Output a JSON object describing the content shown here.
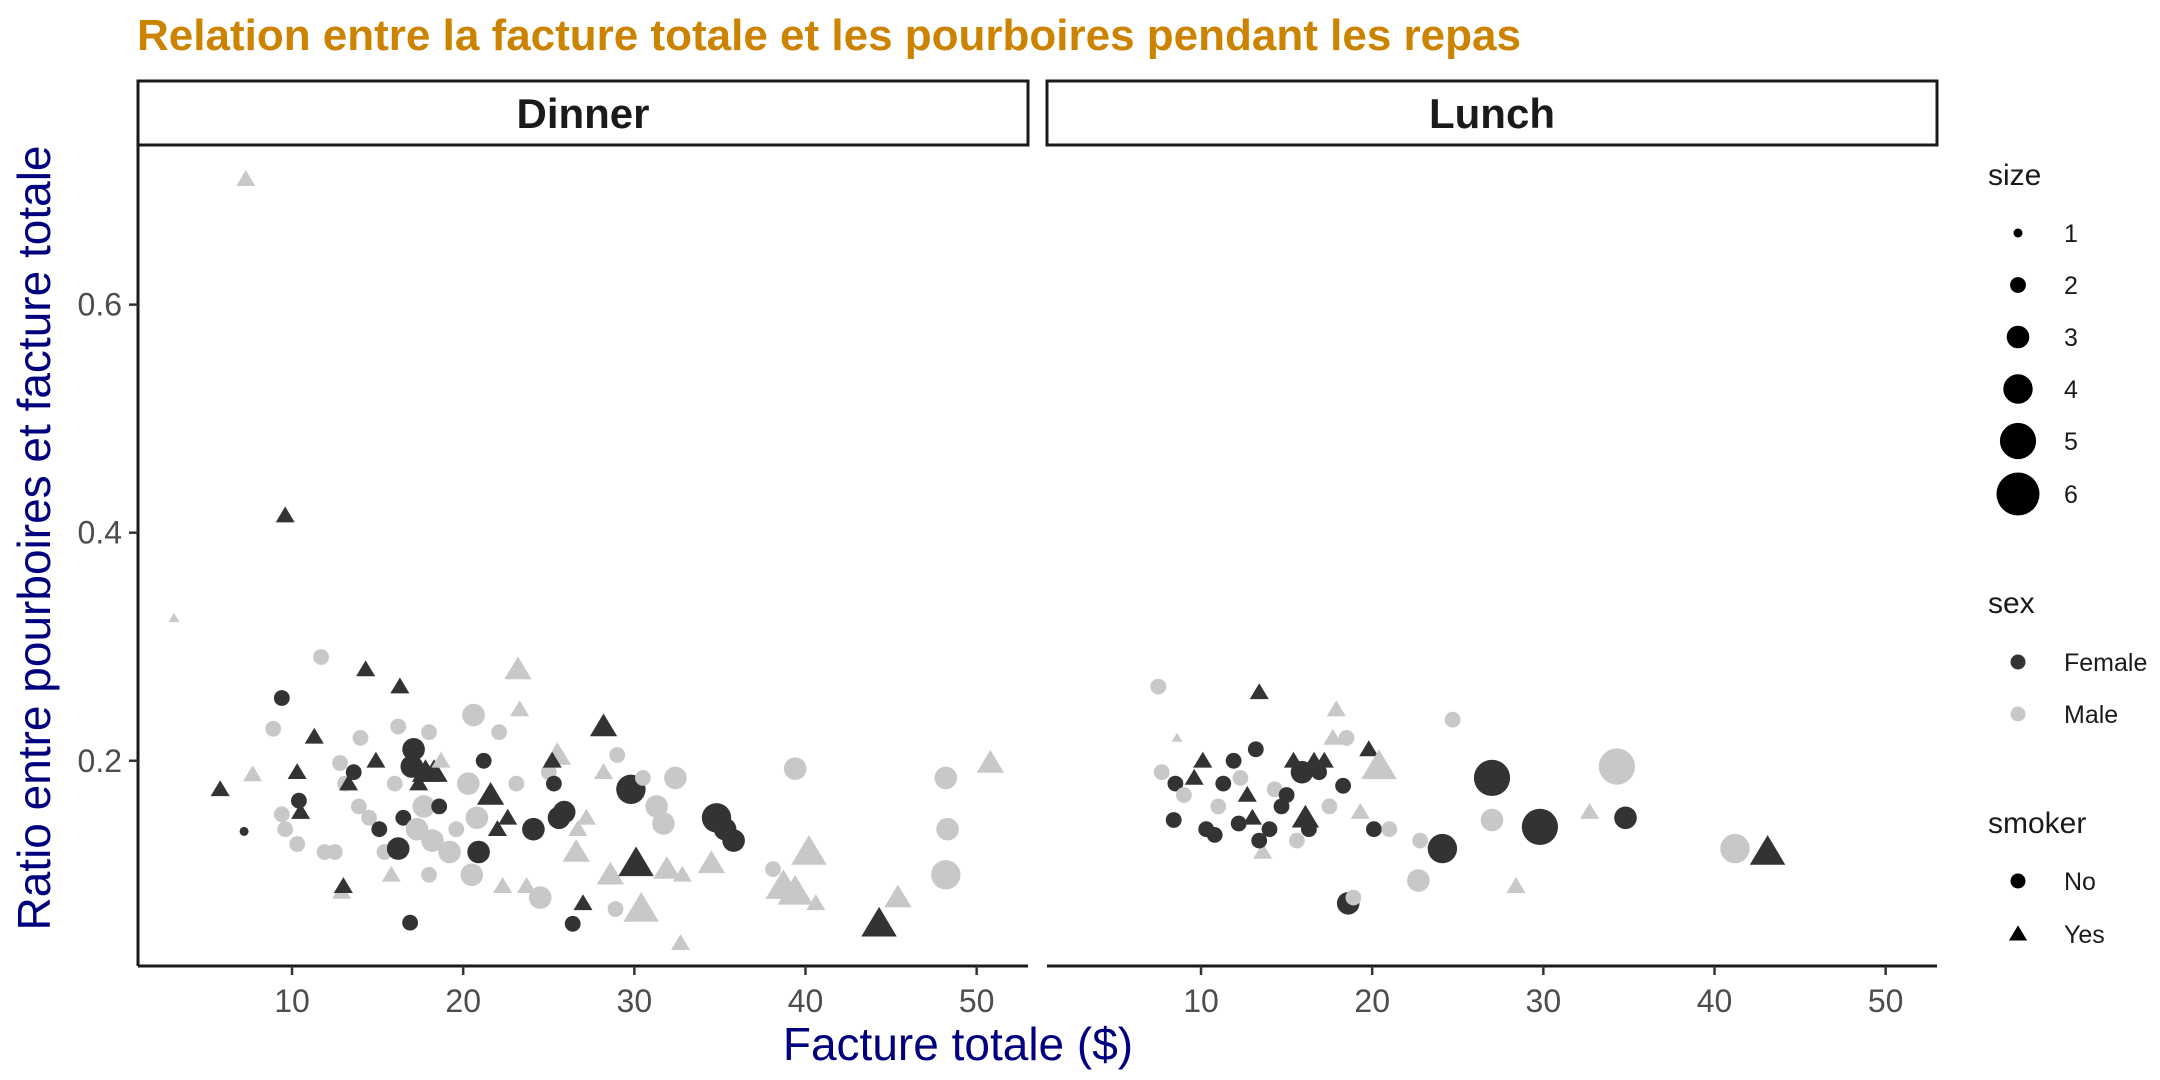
{
  "chart_data": {
    "type": "scatter",
    "title": "Relation entre la facture totale et les pourboires pendant les repas",
    "xlabel": "Facture totale ($)",
    "ylabel": "Ratio entre pourboires et facture totale",
    "xlim": [
      1,
      53
    ],
    "ylim": [
      0.02,
      0.74
    ],
    "x_ticks": [
      10,
      20,
      30,
      40,
      50
    ],
    "y_ticks": [
      0.2,
      0.4,
      0.6
    ],
    "x_tick_labels": [
      "10",
      "20",
      "30",
      "40",
      "50"
    ],
    "y_tick_labels": [
      "0.2",
      "0.4",
      "0.6"
    ],
    "grid": false,
    "legend_position": "right",
    "colors": {
      "title": "#cc8400",
      "axis_title": "#00007f",
      "female": "#333333",
      "male": "#c8c8c8"
    },
    "panels": [
      "Dinner",
      "Lunch"
    ],
    "legends": {
      "size": {
        "title": "size",
        "values": [
          "1",
          "2",
          "3",
          "4",
          "5",
          "6"
        ]
      },
      "sex": {
        "title": "sex",
        "values": [
          "Female",
          "Male"
        ]
      },
      "smoker": {
        "title": "smoker",
        "values": [
          "No",
          "Yes"
        ]
      }
    },
    "field_order": [
      "total_bill",
      "tip_ratio",
      "size",
      "sex",
      "smoker"
    ],
    "points": {
      "Dinner": [
        [
          7.3,
          0.71,
          2,
          "M",
          "Y"
        ],
        [
          3.1,
          0.325,
          1,
          "M",
          "Y"
        ],
        [
          9.6,
          0.415,
          2,
          "F",
          "Y"
        ],
        [
          7.2,
          0.138,
          1,
          "F",
          "N"
        ],
        [
          5.8,
          0.175,
          2,
          "F",
          "Y"
        ],
        [
          7.7,
          0.188,
          2,
          "M",
          "Y"
        ],
        [
          9.4,
          0.255,
          2,
          "F",
          "N"
        ],
        [
          11.7,
          0.291,
          2,
          "M",
          "N"
        ],
        [
          8.9,
          0.228,
          2,
          "M",
          "N"
        ],
        [
          11.3,
          0.221,
          2,
          "F",
          "Y"
        ],
        [
          10.3,
          0.19,
          2,
          "F",
          "Y"
        ],
        [
          10.4,
          0.165,
          2,
          "F",
          "N"
        ],
        [
          10.5,
          0.155,
          2,
          "F",
          "Y"
        ],
        [
          10.3,
          0.127,
          2,
          "M",
          "N"
        ],
        [
          9.6,
          0.14,
          2,
          "M",
          "N"
        ],
        [
          9.4,
          0.153,
          2,
          "M",
          "N"
        ],
        [
          11.9,
          0.12,
          2,
          "M",
          "N"
        ],
        [
          12.5,
          0.12,
          2,
          "M",
          "N"
        ],
        [
          12.8,
          0.198,
          2,
          "M",
          "N"
        ],
        [
          13.1,
          0.18,
          2,
          "M",
          "N"
        ],
        [
          12.9,
          0.085,
          2,
          "M",
          "Y"
        ],
        [
          13.0,
          0.09,
          2,
          "F",
          "Y"
        ],
        [
          14.3,
          0.28,
          2,
          "F",
          "Y"
        ],
        [
          14.0,
          0.22,
          2,
          "M",
          "N"
        ],
        [
          13.6,
          0.19,
          2,
          "F",
          "N"
        ],
        [
          13.3,
          0.18,
          2,
          "F",
          "Y"
        ],
        [
          13.9,
          0.16,
          2,
          "M",
          "N"
        ],
        [
          14.5,
          0.15,
          2,
          "M",
          "N"
        ],
        [
          14.9,
          0.2,
          2,
          "F",
          "Y"
        ],
        [
          15.1,
          0.14,
          2,
          "F",
          "N"
        ],
        [
          15.4,
          0.12,
          2,
          "M",
          "N"
        ],
        [
          15.8,
          0.1,
          2,
          "M",
          "Y"
        ],
        [
          16.3,
          0.265,
          2,
          "F",
          "Y"
        ],
        [
          16.2,
          0.23,
          2,
          "M",
          "N"
        ],
        [
          16.0,
          0.18,
          2,
          "M",
          "N"
        ],
        [
          16.5,
          0.15,
          2,
          "F",
          "N"
        ],
        [
          16.2,
          0.123,
          3,
          "F",
          "N"
        ],
        [
          17.1,
          0.21,
          3,
          "F",
          "N"
        ],
        [
          17.0,
          0.195,
          3,
          "F",
          "N"
        ],
        [
          17.4,
          0.18,
          2,
          "F",
          "Y"
        ],
        [
          17.8,
          0.19,
          3,
          "F",
          "Y"
        ],
        [
          18.3,
          0.19,
          3,
          "F",
          "Y"
        ],
        [
          16.9,
          0.058,
          2,
          "F",
          "N"
        ],
        [
          17.7,
          0.16,
          3,
          "M",
          "N"
        ],
        [
          18.2,
          0.13,
          3,
          "M",
          "N"
        ],
        [
          17.3,
          0.14,
          3,
          "M",
          "N"
        ],
        [
          18.6,
          0.16,
          2,
          "F",
          "N"
        ],
        [
          18.0,
          0.225,
          2,
          "M",
          "N"
        ],
        [
          18.7,
          0.2,
          2,
          "M",
          "Y"
        ],
        [
          19.6,
          0.14,
          2,
          "M",
          "N"
        ],
        [
          19.2,
          0.12,
          3,
          "M",
          "N"
        ],
        [
          18.0,
          0.1,
          2,
          "M",
          "N"
        ],
        [
          20.6,
          0.24,
          3,
          "M",
          "N"
        ],
        [
          20.3,
          0.18,
          3,
          "M",
          "N"
        ],
        [
          20.8,
          0.15,
          3,
          "M",
          "N"
        ],
        [
          20.5,
          0.1,
          3,
          "M",
          "N"
        ],
        [
          20.9,
          0.12,
          3,
          "F",
          "N"
        ],
        [
          21.2,
          0.2,
          2,
          "F",
          "N"
        ],
        [
          21.6,
          0.17,
          3,
          "F",
          "Y"
        ],
        [
          22.0,
          0.14,
          2,
          "F",
          "Y"
        ],
        [
          22.3,
          0.09,
          2,
          "M",
          "Y"
        ],
        [
          22.1,
          0.225,
          2,
          "M",
          "N"
        ],
        [
          23.2,
          0.28,
          3,
          "M",
          "Y"
        ],
        [
          23.3,
          0.245,
          2,
          "M",
          "Y"
        ],
        [
          23.1,
          0.18,
          2,
          "M",
          "N"
        ],
        [
          22.6,
          0.15,
          2,
          "F",
          "Y"
        ],
        [
          23.7,
          0.09,
          2,
          "M",
          "Y"
        ],
        [
          24.1,
          0.14,
          3,
          "F",
          "N"
        ],
        [
          24.5,
          0.08,
          3,
          "M",
          "N"
        ],
        [
          25.0,
          0.19,
          2,
          "M",
          "N"
        ],
        [
          25.3,
          0.18,
          2,
          "F",
          "N"
        ],
        [
          25.6,
          0.15,
          3,
          "F",
          "N"
        ],
        [
          25.9,
          0.155,
          3,
          "F",
          "N"
        ],
        [
          25.5,
          0.205,
          3,
          "M",
          "Y"
        ],
        [
          25.2,
          0.2,
          2,
          "F",
          "Y"
        ],
        [
          26.4,
          0.057,
          2,
          "F",
          "N"
        ],
        [
          26.7,
          0.14,
          2,
          "M",
          "Y"
        ],
        [
          26.6,
          0.12,
          3,
          "M",
          "Y"
        ],
        [
          27.0,
          0.075,
          2,
          "F",
          "Y"
        ],
        [
          27.2,
          0.15,
          2,
          "M",
          "Y"
        ],
        [
          28.2,
          0.23,
          3,
          "F",
          "Y"
        ],
        [
          28.2,
          0.19,
          2,
          "M",
          "Y"
        ],
        [
          28.6,
          0.1,
          3,
          "M",
          "Y"
        ],
        [
          28.9,
          0.07,
          2,
          "M",
          "N"
        ],
        [
          29.0,
          0.205,
          2,
          "M",
          "N"
        ],
        [
          29.8,
          0.175,
          4,
          "F",
          "N"
        ],
        [
          30.1,
          0.11,
          4,
          "F",
          "Y"
        ],
        [
          30.4,
          0.07,
          4,
          "M",
          "Y"
        ],
        [
          30.5,
          0.185,
          2,
          "M",
          "N"
        ],
        [
          31.3,
          0.16,
          3,
          "M",
          "N"
        ],
        [
          31.7,
          0.145,
          3,
          "M",
          "N"
        ],
        [
          31.9,
          0.105,
          3,
          "M",
          "Y"
        ],
        [
          32.4,
          0.185,
          3,
          "M",
          "N"
        ],
        [
          32.7,
          0.04,
          2,
          "M",
          "Y"
        ],
        [
          32.8,
          0.1,
          2,
          "M",
          "Y"
        ],
        [
          34.5,
          0.11,
          3,
          "M",
          "Y"
        ],
        [
          34.8,
          0.15,
          4,
          "F",
          "N"
        ],
        [
          35.3,
          0.14,
          3,
          "F",
          "N"
        ],
        [
          35.8,
          0.13,
          3,
          "F",
          "N"
        ],
        [
          38.1,
          0.105,
          2,
          "M",
          "N"
        ],
        [
          38.7,
          0.09,
          4,
          "M",
          "Y"
        ],
        [
          39.4,
          0.085,
          4,
          "M",
          "Y"
        ],
        [
          39.4,
          0.193,
          3,
          "M",
          "N"
        ],
        [
          40.2,
          0.12,
          4,
          "M",
          "Y"
        ],
        [
          40.6,
          0.075,
          2,
          "M",
          "Y"
        ],
        [
          44.3,
          0.057,
          4,
          "F",
          "Y"
        ],
        [
          45.4,
          0.08,
          3,
          "M",
          "Y"
        ],
        [
          48.2,
          0.185,
          3,
          "M",
          "N"
        ],
        [
          48.3,
          0.14,
          3,
          "M",
          "N"
        ],
        [
          48.2,
          0.1,
          4,
          "M",
          "N"
        ],
        [
          50.8,
          0.198,
          3,
          "M",
          "Y"
        ]
      ],
      "Lunch": [
        [
          7.5,
          0.265,
          2,
          "M",
          "N"
        ],
        [
          7.7,
          0.19,
          2,
          "M",
          "N"
        ],
        [
          8.4,
          0.148,
          2,
          "F",
          "N"
        ],
        [
          8.5,
          0.18,
          2,
          "F",
          "N"
        ],
        [
          8.6,
          0.22,
          1,
          "M",
          "Y"
        ],
        [
          9.0,
          0.17,
          2,
          "M",
          "N"
        ],
        [
          9.6,
          0.185,
          2,
          "F",
          "Y"
        ],
        [
          10.1,
          0.2,
          2,
          "F",
          "Y"
        ],
        [
          10.3,
          0.14,
          2,
          "F",
          "N"
        ],
        [
          10.8,
          0.135,
          2,
          "F",
          "N"
        ],
        [
          11.3,
          0.18,
          2,
          "F",
          "N"
        ],
        [
          11.0,
          0.16,
          2,
          "M",
          "N"
        ],
        [
          11.9,
          0.2,
          2,
          "F",
          "N"
        ],
        [
          12.2,
          0.145,
          2,
          "F",
          "N"
        ],
        [
          12.3,
          0.185,
          2,
          "M",
          "N"
        ],
        [
          12.7,
          0.17,
          2,
          "F",
          "Y"
        ],
        [
          13.0,
          0.15,
          2,
          "F",
          "Y"
        ],
        [
          13.2,
          0.21,
          2,
          "F",
          "N"
        ],
        [
          13.4,
          0.26,
          2,
          "F",
          "Y"
        ],
        [
          13.6,
          0.12,
          2,
          "M",
          "Y"
        ],
        [
          13.4,
          0.13,
          2,
          "F",
          "N"
        ],
        [
          14.0,
          0.14,
          2,
          "F",
          "N"
        ],
        [
          14.3,
          0.175,
          2,
          "M",
          "N"
        ],
        [
          14.7,
          0.16,
          2,
          "F",
          "N"
        ],
        [
          15.0,
          0.17,
          2,
          "F",
          "N"
        ],
        [
          15.4,
          0.2,
          2,
          "F",
          "Y"
        ],
        [
          15.6,
          0.13,
          2,
          "M",
          "N"
        ],
        [
          15.9,
          0.19,
          3,
          "F",
          "N"
        ],
        [
          16.1,
          0.15,
          3,
          "F",
          "Y"
        ],
        [
          16.3,
          0.14,
          2,
          "F",
          "N"
        ],
        [
          16.6,
          0.2,
          2,
          "F",
          "Y"
        ],
        [
          16.9,
          0.19,
          2,
          "F",
          "N"
        ],
        [
          17.2,
          0.2,
          2,
          "F",
          "Y"
        ],
        [
          17.5,
          0.16,
          2,
          "M",
          "N"
        ],
        [
          17.7,
          0.22,
          2,
          "M",
          "Y"
        ],
        [
          17.9,
          0.245,
          2,
          "M",
          "Y"
        ],
        [
          18.3,
          0.178,
          2,
          "F",
          "N"
        ],
        [
          18.5,
          0.22,
          2,
          "M",
          "N"
        ],
        [
          18.6,
          0.075,
          3,
          "F",
          "N"
        ],
        [
          18.9,
          0.08,
          2,
          "M",
          "N"
        ],
        [
          19.3,
          0.155,
          2,
          "M",
          "Y"
        ],
        [
          19.8,
          0.21,
          2,
          "F",
          "Y"
        ],
        [
          20.1,
          0.14,
          2,
          "F",
          "N"
        ],
        [
          20.4,
          0.195,
          4,
          "M",
          "Y"
        ],
        [
          21.0,
          0.14,
          2,
          "M",
          "N"
        ],
        [
          22.7,
          0.095,
          3,
          "M",
          "N"
        ],
        [
          22.8,
          0.13,
          2,
          "M",
          "N"
        ],
        [
          24.1,
          0.123,
          4,
          "F",
          "N"
        ],
        [
          24.7,
          0.236,
          2,
          "M",
          "N"
        ],
        [
          27.0,
          0.185,
          5,
          "F",
          "N"
        ],
        [
          27.0,
          0.148,
          3,
          "M",
          "N"
        ],
        [
          28.4,
          0.09,
          2,
          "M",
          "Y"
        ],
        [
          29.8,
          0.142,
          5,
          "F",
          "N"
        ],
        [
          32.7,
          0.155,
          2,
          "M",
          "Y"
        ],
        [
          34.3,
          0.195,
          5,
          "M",
          "N"
        ],
        [
          34.8,
          0.15,
          3,
          "F",
          "N"
        ],
        [
          41.2,
          0.123,
          4,
          "M",
          "N"
        ],
        [
          43.1,
          0.12,
          4,
          "F",
          "Y"
        ]
      ]
    }
  }
}
